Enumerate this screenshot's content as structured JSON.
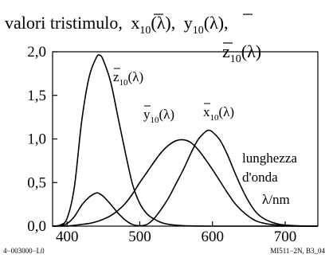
{
  "chart_data": {
    "type": "line",
    "title_line1": "valori tristimulo,",
    "title_line2": "",
    "series_labels": {
      "x10": "x",
      "y10": "y",
      "z10": "z",
      "sub": "10",
      "lambda": "(λ)"
    },
    "xlabel_lines": [
      "lunghezza",
      "d'onda",
      "λ/nm"
    ],
    "x_ticks": [
      "400",
      "500",
      "600",
      "700"
    ],
    "y_ticks": [
      "0,0",
      "0,5",
      "1,0",
      "1,5",
      "2,0"
    ],
    "xlim": [
      380,
      745
    ],
    "ylim": [
      0,
      2.0
    ],
    "grid": false,
    "series": [
      {
        "name": "z10",
        "x": [
          380,
          390,
          400,
          410,
          420,
          430,
          440,
          445,
          450,
          460,
          470,
          480,
          490,
          500,
          510,
          520,
          530,
          540,
          560,
          600,
          700,
          745
        ],
        "y": [
          0.0,
          0.01,
          0.09,
          0.45,
          1.2,
          1.7,
          1.93,
          1.96,
          1.9,
          1.65,
          1.25,
          0.85,
          0.48,
          0.26,
          0.14,
          0.08,
          0.04,
          0.02,
          0.005,
          0.0,
          0.0,
          0.0
        ]
      },
      {
        "name": "x10",
        "x": [
          380,
          390,
          400,
          410,
          420,
          430,
          440,
          445,
          450,
          460,
          470,
          480,
          490,
          500,
          510,
          520,
          530,
          540,
          550,
          560,
          570,
          580,
          590,
          595,
          600,
          610,
          620,
          630,
          640,
          650,
          660,
          670,
          680,
          690,
          700,
          720,
          745
        ],
        "y": [
          0.0,
          0.005,
          0.03,
          0.11,
          0.24,
          0.33,
          0.38,
          0.37,
          0.34,
          0.25,
          0.15,
          0.07,
          0.02,
          0.005,
          0.02,
          0.09,
          0.2,
          0.33,
          0.49,
          0.65,
          0.83,
          0.99,
          1.08,
          1.1,
          1.08,
          0.99,
          0.83,
          0.63,
          0.44,
          0.28,
          0.16,
          0.09,
          0.05,
          0.025,
          0.012,
          0.003,
          0.0
        ]
      },
      {
        "name": "y10",
        "x": [
          380,
          400,
          410,
          420,
          430,
          440,
          450,
          460,
          470,
          480,
          490,
          500,
          510,
          520,
          530,
          540,
          550,
          560,
          570,
          580,
          590,
          600,
          610,
          620,
          630,
          640,
          650,
          660,
          670,
          680,
          700,
          720,
          745
        ],
        "y": [
          0.0,
          0.002,
          0.01,
          0.02,
          0.03,
          0.05,
          0.08,
          0.12,
          0.18,
          0.26,
          0.37,
          0.5,
          0.62,
          0.74,
          0.85,
          0.93,
          0.98,
          0.99,
          0.96,
          0.88,
          0.77,
          0.65,
          0.52,
          0.39,
          0.27,
          0.18,
          0.11,
          0.06,
          0.035,
          0.02,
          0.005,
          0.001,
          0.0
        ]
      }
    ]
  },
  "footer": {
    "left": "4−003000−L0",
    "right": "MI511−2N, B3_04"
  }
}
